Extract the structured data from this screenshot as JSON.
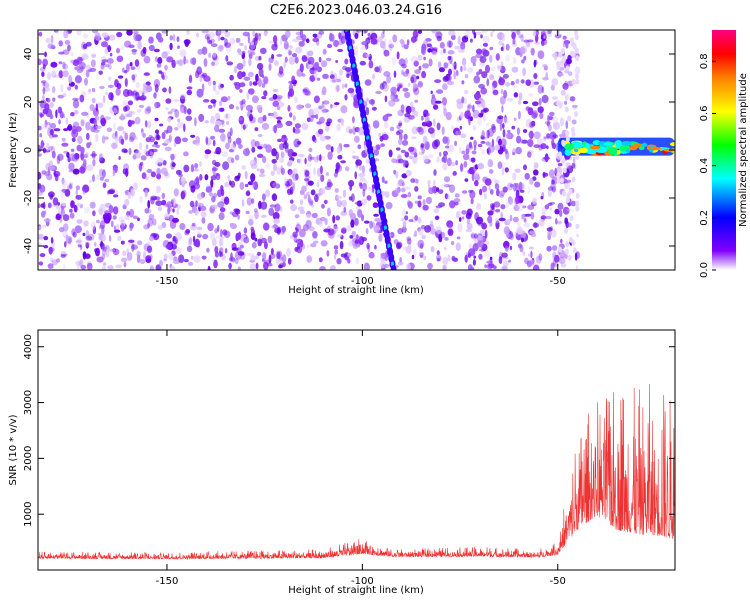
{
  "title": "C2E6.2023.046.03.24.G16",
  "spectrogram": {
    "type": "heatmap",
    "xlabel": "Height of straight line (km)",
    "ylabel": "Frequency (Hz)",
    "xlim": [
      -183,
      -20
    ],
    "ylim": [
      -50,
      50
    ],
    "xticks": [
      "-150",
      "-100",
      "-50"
    ],
    "yticks": [
      "-40",
      "-20",
      "0",
      "20",
      "40"
    ],
    "colorbar": {
      "label": "Normalized spectral amplitude",
      "range": [
        0.0,
        0.92
      ],
      "ticks": [
        "0.0",
        "0.2",
        "0.4",
        "0.6",
        "0.8"
      ],
      "colormap": [
        "#ffffff",
        "#8000ff",
        "#0000ff",
        "#00ffff",
        "#00ff00",
        "#ffff00",
        "#ff8000",
        "#ff0000",
        "#ff0080"
      ]
    },
    "features": {
      "noise_region_x": [
        -183,
        -50
      ],
      "diagonal_trace": {
        "x_start": -104,
        "y_start": 50,
        "x_end": -92,
        "y_end": -50
      },
      "strong_band": {
        "x": [
          -50,
          -20
        ],
        "y_center": 1
      }
    }
  },
  "snr_chart": {
    "type": "line",
    "xlabel": "Height of straight line (km)",
    "ylabel": "SNR (10 * v/v)",
    "xlim": [
      -183,
      -20
    ],
    "ylim": [
      0,
      4300
    ],
    "xticks": [
      "-150",
      "-100",
      "-50"
    ],
    "yticks": [
      "1000",
      "2000",
      "3000",
      "4000"
    ],
    "color": "#ee3333",
    "profile": [
      {
        "x": -183,
        "base": 220,
        "amp": 120
      },
      {
        "x": -150,
        "base": 210,
        "amp": 120
      },
      {
        "x": -110,
        "base": 230,
        "amp": 160
      },
      {
        "x": -100,
        "base": 320,
        "amp": 300
      },
      {
        "x": -92,
        "base": 250,
        "amp": 140
      },
      {
        "x": -70,
        "base": 260,
        "amp": 180
      },
      {
        "x": -55,
        "base": 240,
        "amp": 150
      },
      {
        "x": -50,
        "base": 300,
        "amp": 250
      },
      {
        "x": -45,
        "base": 900,
        "amp": 1800
      },
      {
        "x": -40,
        "base": 1200,
        "amp": 2200
      },
      {
        "x": -35,
        "base": 1000,
        "amp": 2800
      },
      {
        "x": -30,
        "base": 900,
        "amp": 2600
      },
      {
        "x": -25,
        "base": 900,
        "amp": 2800
      },
      {
        "x": -20,
        "base": 800,
        "amp": 2500
      }
    ]
  }
}
